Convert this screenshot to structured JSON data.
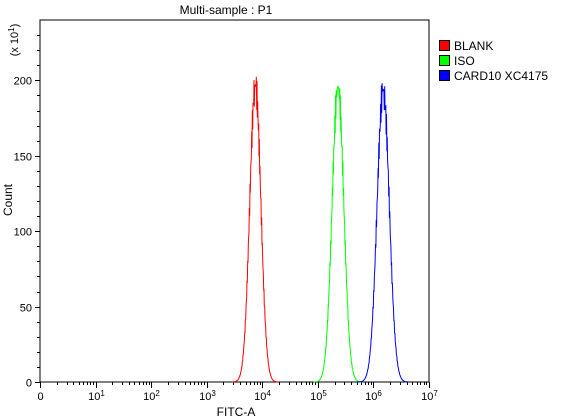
{
  "chart_data": {
    "type": "area",
    "title": "Multi-sample : P1",
    "xlabel": "FITC-A",
    "ylabel": "Count",
    "y_multiplier_label": "(x 10¹)",
    "x_scale": "log",
    "xlim": [
      1,
      10000000
    ],
    "ylim": [
      0,
      240
    ],
    "x_ticks": [
      {
        "value": 1,
        "label": "0"
      },
      {
        "value": 10,
        "label": "10",
        "exp": "1"
      },
      {
        "value": 100,
        "label": "10",
        "exp": "2"
      },
      {
        "value": 1000,
        "label": "10",
        "exp": "3"
      },
      {
        "value": 10000,
        "label": "10",
        "exp": "4"
      },
      {
        "value": 100000,
        "label": "10",
        "exp": "5"
      },
      {
        "value": 1000000,
        "label": "10",
        "exp": "6"
      },
      {
        "value": 10000000,
        "label": "10",
        "exp": "7"
      }
    ],
    "y_ticks": [
      0,
      50,
      100,
      150,
      200
    ],
    "grid": false,
    "legend_position": "right",
    "series": [
      {
        "name": "BLANK",
        "color": "#ff0000",
        "peak_x": 7500,
        "peak_y": 197,
        "log_sigma": 0.1
      },
      {
        "name": "ISO",
        "color": "#00ff00",
        "peak_x": 230000,
        "peak_y": 196,
        "log_sigma": 0.105
      },
      {
        "name": "CARD10 XC4175",
        "color": "#0000ff",
        "peak_x": 1500000,
        "peak_y": 194,
        "log_sigma": 0.11
      }
    ]
  }
}
